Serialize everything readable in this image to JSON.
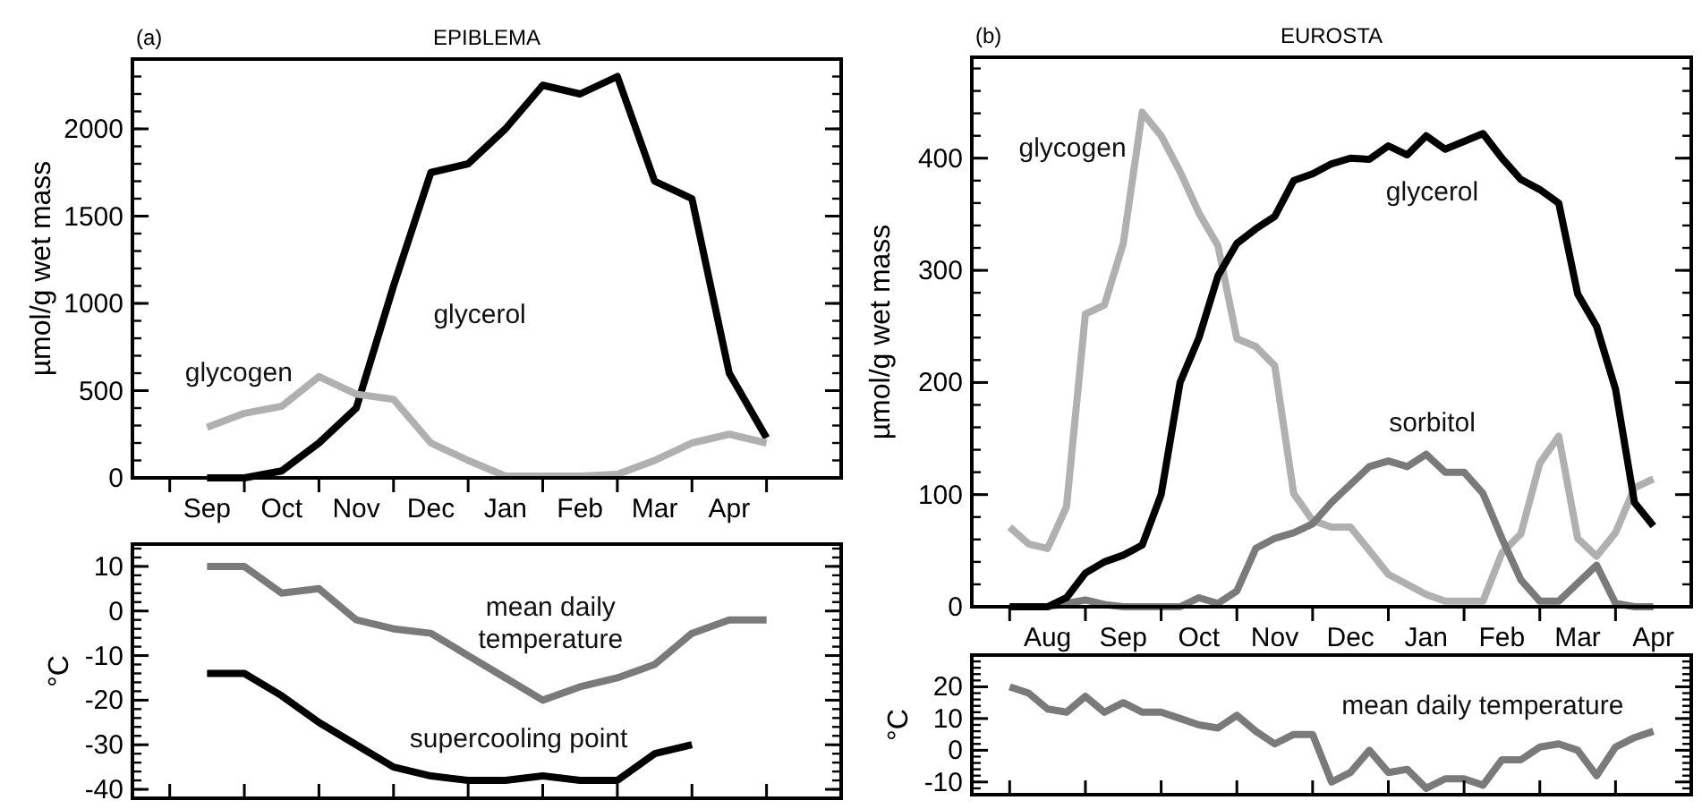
{
  "chart_data": [
    {
      "type": "line",
      "title": "EPIBLEMA",
      "annotations": [
        "(a)"
      ],
      "ylabel": "µmol/g wet mass",
      "ylim": [
        0,
        2400
      ],
      "categories": [
        "Sep",
        null,
        "Oct",
        null,
        "Nov",
        null,
        "Dec",
        null,
        "Jan",
        null,
        "Feb",
        null,
        "Mar",
        null,
        "Apr",
        null
      ],
      "yticks": [
        0,
        500,
        1000,
        1500,
        2000
      ],
      "series": [
        {
          "name": "glycerol",
          "color": "#000000",
          "values": [
            0,
            0,
            40,
            200,
            400,
            1100,
            1750,
            1800,
            2000,
            2250,
            2200,
            2300,
            1700,
            1600,
            600,
            230
          ]
        },
        {
          "name": "glycogen",
          "color": "#b0b0b0",
          "values": [
            290,
            370,
            410,
            580,
            480,
            450,
            200,
            100,
            10,
            10,
            10,
            20,
            100,
            200,
            250,
            200
          ]
        }
      ],
      "grid": false
    },
    {
      "type": "line",
      "ylabel": "°C",
      "ylim": [
        -42,
        15
      ],
      "tick_labels": "y",
      "categories": [
        null,
        null,
        null,
        null,
        null,
        null,
        null,
        null,
        null,
        null,
        null,
        null,
        null,
        null,
        null,
        null
      ],
      "yticks": [
        -40,
        -30,
        -20,
        -10,
        0,
        10
      ],
      "series": [
        {
          "name": "mean daily temperature",
          "color": "#7a7a7a",
          "values": [
            10,
            10,
            4,
            5,
            -2,
            -4,
            -5,
            -10,
            -15,
            -20,
            -17,
            -15,
            -12,
            -5,
            -2,
            -2
          ]
        },
        {
          "name": "supercooling point",
          "color": "#000000",
          "values": [
            -14,
            -14,
            -19,
            -25,
            -30,
            -35,
            -37,
            -38,
            -38,
            -37,
            -38,
            -38,
            -32,
            -30,
            null,
            null
          ]
        }
      ],
      "grid": false
    },
    {
      "type": "line",
      "title": "EUROSTA",
      "annotations": [
        "(b)"
      ],
      "ylabel": "µmol/g wet mass",
      "ylim": [
        0,
        490
      ],
      "categories": [
        null,
        null,
        "Aug",
        null,
        null,
        null,
        "Sep",
        null,
        null,
        null,
        "Oct",
        null,
        null,
        null,
        "Nov",
        null,
        null,
        null,
        "Dec",
        null,
        null,
        null,
        "Jan",
        null,
        null,
        null,
        "Feb",
        null,
        null,
        null,
        "Mar",
        null,
        null,
        null,
        "Apr"
      ],
      "yticks": [
        0,
        100,
        200,
        300,
        400
      ],
      "series": [
        {
          "name": "glycogen",
          "color": "#b0b0b0",
          "values": [
            71,
            56,
            52,
            89,
            261,
            269,
            324,
            441,
            420,
            388,
            351,
            322,
            239,
            232,
            215,
            101,
            77,
            71,
            71,
            50,
            29,
            20,
            11,
            5,
            5,
            5,
            48,
            65,
            128,
            152,
            61,
            45,
            66,
            106,
            114
          ]
        },
        {
          "name": "sorbitol",
          "color": "#7a7a7a",
          "values": [
            0,
            0,
            0,
            3,
            6,
            2,
            0,
            0,
            0,
            0,
            8,
            3,
            14,
            52,
            61,
            66,
            74,
            93,
            109,
            125,
            130,
            125,
            136,
            120,
            120,
            101,
            61,
            24,
            5,
            5,
            21,
            37,
            3,
            0,
            0
          ]
        },
        {
          "name": "glycerol",
          "color": "#000000",
          "values": [
            0,
            0,
            0,
            8,
            30,
            40,
            46,
            55,
            100,
            200,
            240,
            295,
            324,
            337,
            348,
            380,
            386,
            395,
            400,
            399,
            411,
            403,
            420,
            408,
            415,
            422,
            400,
            381,
            372,
            360,
            279,
            250,
            194,
            93,
            72
          ]
        }
      ],
      "grid": false
    },
    {
      "type": "line",
      "ylabel": "°C",
      "ylim": [
        -14,
        30
      ],
      "tick_labels": "y",
      "categories": [
        null,
        null,
        null,
        null,
        null,
        null,
        null,
        null,
        null,
        null,
        null,
        null,
        null,
        null,
        null,
        null,
        null,
        null,
        null,
        null,
        null,
        null,
        null,
        null,
        null,
        null,
        null,
        null,
        null,
        null,
        null,
        null,
        null,
        null,
        null
      ],
      "yticks": [
        -10,
        0,
        10,
        20
      ],
      "series": [
        {
          "name": "mean daily temperature",
          "color": "#7a7a7a",
          "values": [
            20,
            18,
            13,
            12,
            17,
            12,
            15,
            12,
            12,
            10,
            8,
            7,
            11,
            6,
            2,
            5,
            5,
            -10,
            -7,
            0,
            -7,
            -6,
            -12,
            -9,
            -9,
            -11,
            -3,
            -3,
            1,
            2,
            0,
            -8,
            1,
            4,
            6
          ]
        }
      ],
      "grid": false
    }
  ]
}
